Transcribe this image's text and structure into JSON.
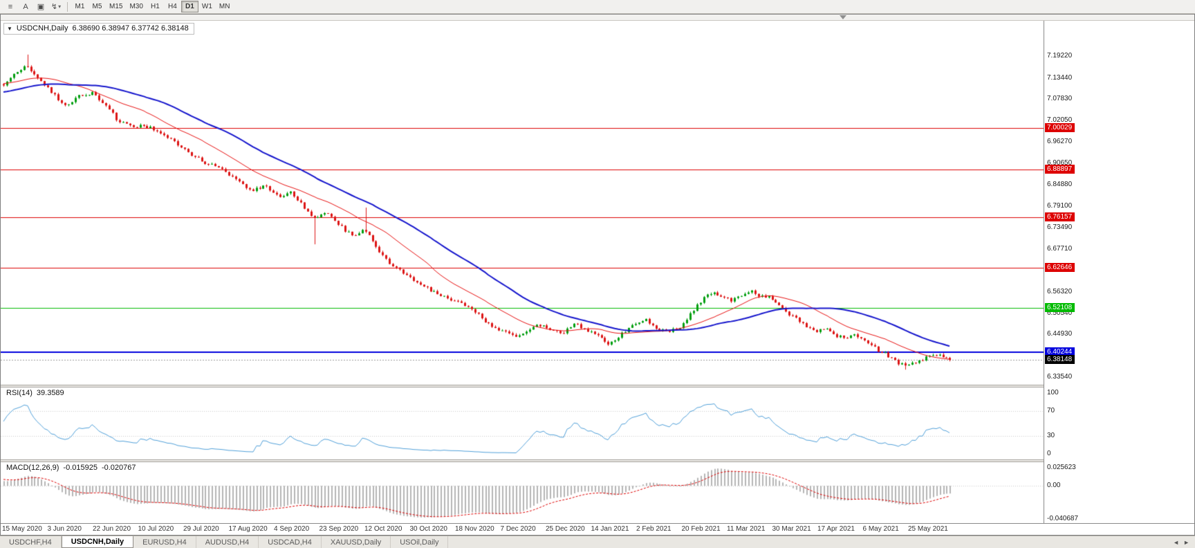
{
  "toolbar": {
    "menu_icon": "≡",
    "a_button": "A",
    "box_icon": "▣",
    "tool_icon": "↯",
    "tool_caret": "▾",
    "timeframes": [
      "M1",
      "M5",
      "M15",
      "M30",
      "H1",
      "H4",
      "D1",
      "W1",
      "MN"
    ],
    "active_timeframe": "D1"
  },
  "chart_header": {
    "collapse_arrow": "▼",
    "symbol_period": "USDCNH,Daily",
    "ohlc_text": "6.38690 6.38947 6.37742 6.38148"
  },
  "price_axis": {
    "labels": [
      7.1922,
      7.1344,
      7.0783,
      7.0205,
      6.9627,
      6.9065,
      6.8488,
      6.791,
      6.7349,
      6.6771,
      6.5632,
      6.5054,
      6.4493,
      6.3354
    ]
  },
  "horizontal_lines": [
    {
      "value": 7.00029,
      "color": "#dd0000",
      "width": 1,
      "badge_text": "7.00029"
    },
    {
      "value": 6.88897,
      "color": "#dd0000",
      "width": 1,
      "badge_text": "6.88897"
    },
    {
      "value": 6.76157,
      "color": "#dd0000",
      "width": 1,
      "badge_text": "6.76157"
    },
    {
      "value": 6.62646,
      "color": "#dd0000",
      "width": 1,
      "badge_text": "6.62646"
    },
    {
      "value": 6.52108,
      "color": "#00bb00",
      "width": 1,
      "badge_text": "6.52108"
    },
    {
      "value": 6.40244,
      "color": "#0000dd",
      "width": 2,
      "badge_text": "6.40244"
    }
  ],
  "current_price": {
    "value": 6.38148,
    "badge_text": "6.38148",
    "badge_color": "#000000"
  },
  "rsi_pane": {
    "label": "RSI(14)",
    "value": "39.3589",
    "axis_labels": [
      "100",
      "70",
      "30",
      "0"
    ],
    "axis_values": [
      100,
      70,
      30,
      0
    ],
    "level_lines": [
      70,
      30
    ],
    "line_color": "#4f9fd8"
  },
  "macd_pane": {
    "label": "MACD(12,26,9)",
    "main_value": "-0.015925",
    "signal_value": "-0.020767",
    "axis_top_label": "0.025623",
    "axis_zero_label": "0.00",
    "axis_bottom_label": "-0.040687",
    "histogram_color": "#b5b5b5",
    "signal_color": "#dd0000"
  },
  "date_axis": [
    "15 May 2020",
    "3 Jun 2020",
    "22 Jun 2020",
    "10 Jul 2020",
    "29 Jul 2020",
    "17 Aug 2020",
    "4 Sep 2020",
    "23 Sep 2020",
    "12 Oct 2020",
    "30 Oct 2020",
    "18 Nov 2020",
    "7 Dec 2020",
    "25 Dec 2020",
    "14 Jan 2021",
    "2 Feb 2021",
    "20 Feb 2021",
    "11 Mar 2021",
    "30 Mar 2021",
    "17 Apr 2021",
    "6 May 2021",
    "25 May 2021"
  ],
  "tab_bar": {
    "tabs": [
      "USDCHF,H4",
      "USDCNH,Daily",
      "EURUSD,H4",
      "AUDUSD,H4",
      "USDCAD,H4",
      "XAUUSD,Daily",
      "USOil,Daily"
    ],
    "active_tab": "USDCNH,Daily",
    "left_arrow": "◄",
    "right_arrow": "►"
  },
  "chart_data": {
    "type": "candlestick",
    "symbol": "USDCNH",
    "timeframe": "Daily",
    "last_candle": {
      "open": 6.3869,
      "high": 6.38947,
      "low": 6.37742,
      "close": 6.38148
    },
    "price_axis_range": [
      6.3152,
      7.2868
    ],
    "visible_candles": 278,
    "warmup_candles": 80,
    "seed": 42,
    "noise_close": 0.009,
    "noise_wick": 0.0045,
    "trend_anchors": [
      [
        -0.29,
        7.055
      ],
      [
        -0.22,
        7.075
      ],
      [
        -0.15,
        7.062
      ],
      [
        -0.09,
        7.09
      ],
      [
        -0.04,
        7.128
      ],
      [
        0.0,
        7.118
      ],
      [
        0.012,
        7.148
      ],
      [
        0.025,
        7.168
      ],
      [
        0.038,
        7.128
      ],
      [
        0.052,
        7.092
      ],
      [
        0.065,
        7.06
      ],
      [
        0.08,
        7.088
      ],
      [
        0.093,
        7.094
      ],
      [
        0.108,
        7.062
      ],
      [
        0.122,
        7.016
      ],
      [
        0.138,
        7.006
      ],
      [
        0.155,
        7.002
      ],
      [
        0.17,
        6.984
      ],
      [
        0.186,
        6.952
      ],
      [
        0.202,
        6.922
      ],
      [
        0.217,
        6.904
      ],
      [
        0.232,
        6.888
      ],
      [
        0.247,
        6.858
      ],
      [
        0.262,
        6.834
      ],
      [
        0.276,
        6.846
      ],
      [
        0.29,
        6.818
      ],
      [
        0.304,
        6.828
      ],
      [
        0.318,
        6.786
      ],
      [
        0.328,
        6.758
      ],
      [
        0.34,
        6.776
      ],
      [
        0.354,
        6.742
      ],
      [
        0.368,
        6.714
      ],
      [
        0.382,
        6.728
      ],
      [
        0.396,
        6.67
      ],
      [
        0.41,
        6.636
      ],
      [
        0.424,
        6.61
      ],
      [
        0.44,
        6.586
      ],
      [
        0.455,
        6.562
      ],
      [
        0.47,
        6.548
      ],
      [
        0.485,
        6.528
      ],
      [
        0.5,
        6.508
      ],
      [
        0.512,
        6.478
      ],
      [
        0.525,
        6.462
      ],
      [
        0.538,
        6.444
      ],
      [
        0.552,
        6.458
      ],
      [
        0.565,
        6.476
      ],
      [
        0.578,
        6.462
      ],
      [
        0.59,
        6.452
      ],
      [
        0.602,
        6.478
      ],
      [
        0.615,
        6.462
      ],
      [
        0.628,
        6.444
      ],
      [
        0.64,
        6.424
      ],
      [
        0.652,
        6.448
      ],
      [
        0.665,
        6.472
      ],
      [
        0.678,
        6.488
      ],
      [
        0.69,
        6.464
      ],
      [
        0.702,
        6.455
      ],
      [
        0.716,
        6.472
      ],
      [
        0.728,
        6.51
      ],
      [
        0.74,
        6.548
      ],
      [
        0.75,
        6.562
      ],
      [
        0.76,
        6.548
      ],
      [
        0.77,
        6.538
      ],
      [
        0.78,
        6.556
      ],
      [
        0.79,
        6.564
      ],
      [
        0.8,
        6.552
      ],
      [
        0.812,
        6.545
      ],
      [
        0.822,
        6.52
      ],
      [
        0.832,
        6.5
      ],
      [
        0.845,
        6.478
      ],
      [
        0.858,
        6.454
      ],
      [
        0.868,
        6.468
      ],
      [
        0.878,
        6.448
      ],
      [
        0.89,
        6.438
      ],
      [
        0.9,
        6.448
      ],
      [
        0.912,
        6.43
      ],
      [
        0.922,
        6.41
      ],
      [
        0.934,
        6.394
      ],
      [
        0.944,
        6.376
      ],
      [
        0.954,
        6.364
      ],
      [
        0.964,
        6.374
      ],
      [
        0.976,
        6.388
      ],
      [
        0.988,
        6.392
      ],
      [
        1.0,
        6.3815
      ]
    ],
    "special_candles": [
      {
        "index": 7,
        "high": 7.1965
      },
      {
        "index": 91,
        "low": 6.69
      },
      {
        "index": 106,
        "high": 6.788
      },
      {
        "index": 264,
        "low": 6.3554
      }
    ],
    "moving_averages": [
      {
        "period": 20,
        "color": "#e61010",
        "width": 1
      },
      {
        "period": 45,
        "color": "#1515cc",
        "width": 2
      }
    ],
    "indicators": {
      "rsi": {
        "period": 14,
        "last_value": 39.3589
      },
      "macd": {
        "fast": 12,
        "slow": 26,
        "signal": 9,
        "last_main": -0.015925,
        "last_signal": -0.020767
      }
    },
    "horizontal_line_values": [
      7.00029,
      6.88897,
      6.76157,
      6.62646,
      6.52108,
      6.40244
    ],
    "current_price": 6.38148
  }
}
